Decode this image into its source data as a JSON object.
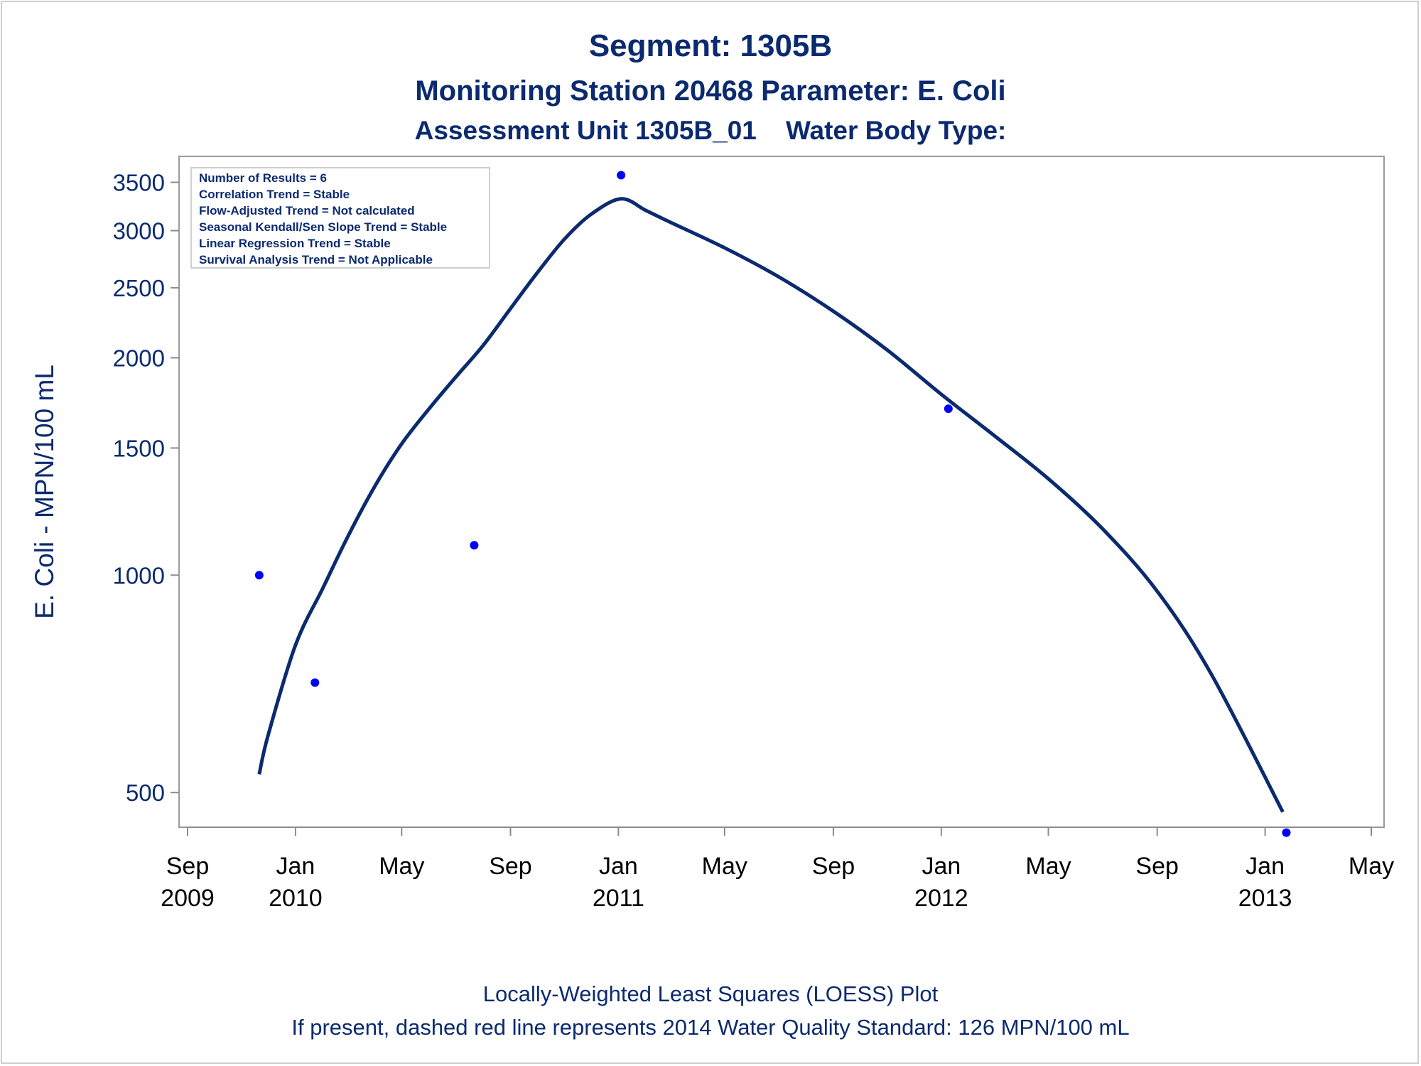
{
  "titles": {
    "line1": "Segment: 1305B",
    "line2": "Monitoring Station 20468 Parameter: E. Coli",
    "line3": "Assessment Unit 1305B_01    Water Body Type:"
  },
  "footnotes": {
    "line1": "Locally-Weighted Least Squares (LOESS) Plot",
    "line2": "If present, dashed red line represents 2014 Water Quality Standard: 126 MPN/100 mL"
  },
  "colors": {
    "text": "#0b2a6f",
    "points": "#0000ff",
    "loess_line": "#0b2a6f",
    "axis": "#8c8c8c",
    "tick_text": "#000000"
  },
  "chart_data": {
    "type": "scatter",
    "xlabel": "",
    "ylabel": "E. Coli - MPN/100 mL",
    "y_scale": "log",
    "ylim": [
      460,
      3700
    ],
    "xlim": [
      "2009-09-01",
      "2013-05-01"
    ],
    "y_ticks": [
      500,
      1000,
      1500,
      2000,
      2500,
      3000,
      3500
    ],
    "x_ticks": [
      {
        "date": "2009-09-01",
        "label1": "Sep",
        "label2": "2009"
      },
      {
        "date": "2010-01-01",
        "label1": "Jan",
        "label2": "2010"
      },
      {
        "date": "2010-05-01",
        "label1": "May",
        "label2": ""
      },
      {
        "date": "2010-09-01",
        "label1": "Sep",
        "label2": ""
      },
      {
        "date": "2011-01-01",
        "label1": "Jan",
        "label2": "2011"
      },
      {
        "date": "2011-05-01",
        "label1": "May",
        "label2": ""
      },
      {
        "date": "2011-09-01",
        "label1": "Sep",
        "label2": ""
      },
      {
        "date": "2012-01-01",
        "label1": "Jan",
        "label2": "2012"
      },
      {
        "date": "2012-05-01",
        "label1": "May",
        "label2": ""
      },
      {
        "date": "2012-09-01",
        "label1": "Sep",
        "label2": ""
      },
      {
        "date": "2013-01-01",
        "label1": "Jan",
        "label2": "2013"
      },
      {
        "date": "2013-05-01",
        "label1": "May",
        "label2": ""
      }
    ],
    "series": [
      {
        "type": "scatter",
        "points": [
          {
            "x": "2009-11-21",
            "y": 1000
          },
          {
            "x": "2010-01-23",
            "y": 710
          },
          {
            "x": "2010-07-22",
            "y": 1100
          },
          {
            "x": "2011-01-04",
            "y": 3580
          },
          {
            "x": "2012-01-09",
            "y": 1700
          },
          {
            "x": "2013-01-25",
            "y": 440
          }
        ]
      },
      {
        "type": "line",
        "points": [
          {
            "x": "2009-11-21",
            "y": 530
          },
          {
            "x": "2009-12-01",
            "y": 600
          },
          {
            "x": "2010-01-01",
            "y": 800
          },
          {
            "x": "2010-02-01",
            "y": 960
          },
          {
            "x": "2010-03-01",
            "y": 1130
          },
          {
            "x": "2010-04-01",
            "y": 1330
          },
          {
            "x": "2010-05-01",
            "y": 1520
          },
          {
            "x": "2010-06-01",
            "y": 1700
          },
          {
            "x": "2010-07-01",
            "y": 1880
          },
          {
            "x": "2010-08-01",
            "y": 2080
          },
          {
            "x": "2010-09-01",
            "y": 2340
          },
          {
            "x": "2010-10-01",
            "y": 2620
          },
          {
            "x": "2010-11-01",
            "y": 2920
          },
          {
            "x": "2010-12-01",
            "y": 3160
          },
          {
            "x": "2011-01-04",
            "y": 3320
          },
          {
            "x": "2011-02-01",
            "y": 3200
          },
          {
            "x": "2011-03-01",
            "y": 3080
          },
          {
            "x": "2011-05-01",
            "y": 2840
          },
          {
            "x": "2011-07-01",
            "y": 2590
          },
          {
            "x": "2011-09-01",
            "y": 2320
          },
          {
            "x": "2011-11-01",
            "y": 2050
          },
          {
            "x": "2012-01-01",
            "y": 1780
          },
          {
            "x": "2012-03-01",
            "y": 1560
          },
          {
            "x": "2012-05-01",
            "y": 1360
          },
          {
            "x": "2012-07-01",
            "y": 1160
          },
          {
            "x": "2012-09-01",
            "y": 950
          },
          {
            "x": "2012-11-01",
            "y": 730
          },
          {
            "x": "2013-01-21",
            "y": 470
          }
        ]
      }
    ],
    "legend": {
      "placement": "top-left",
      "lines": [
        "Number of Results = 6",
        "Correlation Trend = Stable",
        "Flow-Adjusted Trend = Not calculated",
        "Seasonal Kendall/Sen Slope Trend = Stable",
        "Linear Regression Trend = Stable",
        "Survival Analysis Trend = Not Applicable"
      ]
    }
  }
}
